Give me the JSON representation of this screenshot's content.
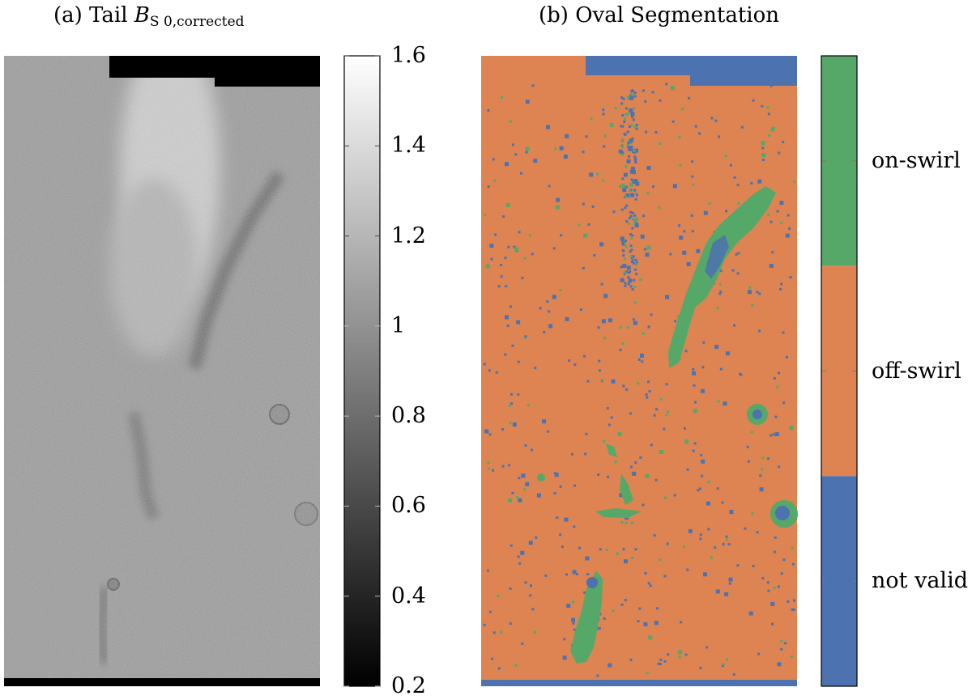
{
  "chart_data": [
    {
      "type": "heatmap",
      "title_prefix": "(a) Tail ",
      "title_var": "B",
      "title_sub": "S 0,corrected",
      "colormap": "grayscale",
      "colorbar": {
        "range": [
          0.2,
          1.6
        ],
        "ticks": [
          0.2,
          0.4,
          0.6,
          0.8,
          1,
          1.2,
          1.4,
          1.6
        ],
        "tick_labels": [
          "0.2",
          "0.4",
          "0.6",
          "0.8",
          "1",
          "1.2",
          "1.4",
          "1.6"
        ]
      }
    },
    {
      "type": "heatmap",
      "title": "(b) Oval Segmentation",
      "colormap": "categorical",
      "classes": [
        {
          "label": "on-swirl",
          "color": "#55a868"
        },
        {
          "label": "off-swirl",
          "color": "#dd8452"
        },
        {
          "label": "not valid",
          "color": "#4c72b0"
        }
      ]
    }
  ]
}
